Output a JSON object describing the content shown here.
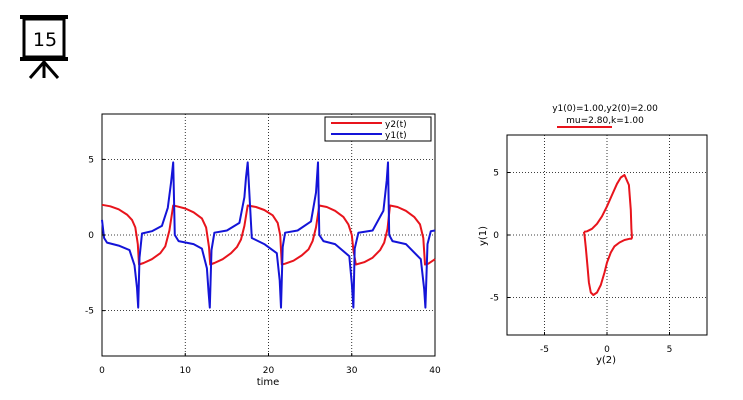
{
  "badge": {
    "number": "15",
    "icon": "presentation-board-icon"
  },
  "chart_data": [
    {
      "type": "line",
      "title": "",
      "xlabel": "time",
      "ylabel": "",
      "xlim": [
        0,
        40
      ],
      "ylim": [
        -8,
        8
      ],
      "xticks": [
        "0",
        "10",
        "20",
        "30",
        "40"
      ],
      "yticks": [
        "5",
        "0",
        "-5"
      ],
      "grid": true,
      "legend": "top-right",
      "period": 8.55,
      "series": [
        {
          "name": "y2(t)",
          "color": "#e8141c",
          "x": [
            0,
            1,
            2,
            3,
            3.6,
            4.0,
            4.3,
            4.45,
            5,
            6,
            7,
            7.6,
            8.1,
            8.55,
            9,
            10,
            11,
            12,
            12.5,
            12.85,
            13,
            13.5,
            14.5,
            15.5,
            16.2,
            16.7,
            17.1,
            17.5,
            18.5,
            19.5,
            20.5,
            21.1,
            21.4,
            21.6,
            22,
            23,
            24,
            24.8,
            25.3,
            25.7,
            26.1,
            27,
            28,
            29,
            29.6,
            30,
            30.2,
            30.5,
            31.5,
            32.5,
            33.4,
            33.9,
            34.3,
            34.6,
            35.5,
            36.5,
            37.5,
            38.2,
            38.6,
            38.8,
            39.2,
            40
          ],
          "y": [
            2.0,
            1.9,
            1.7,
            1.35,
            1.0,
            0.5,
            -0.6,
            -1.95,
            -1.85,
            -1.6,
            -1.2,
            -0.75,
            0.3,
            1.95,
            1.9,
            1.75,
            1.5,
            1.1,
            0.5,
            -0.8,
            -1.95,
            -1.85,
            -1.6,
            -1.2,
            -0.8,
            -0.3,
            0.6,
            1.95,
            1.85,
            1.65,
            1.3,
            0.8,
            0,
            -1.95,
            -1.9,
            -1.7,
            -1.35,
            -0.95,
            -0.4,
            0.5,
            1.95,
            1.85,
            1.6,
            1.2,
            0.7,
            0,
            -1.0,
            -1.95,
            -1.8,
            -1.5,
            -1.0,
            -0.5,
            0.4,
            1.95,
            1.85,
            1.6,
            1.2,
            0.7,
            -0.2,
            -1.95,
            -1.9,
            -1.6
          ]
        },
        {
          "name": "y1(t)",
          "color": "#1414d8",
          "x": [
            0,
            0.25,
            0.6,
            2,
            3.3,
            3.9,
            4.2,
            4.35,
            4.5,
            4.8,
            6,
            7.2,
            7.9,
            8.3,
            8.55,
            8.75,
            9.2,
            11,
            12,
            12.6,
            12.8,
            12.95,
            13.15,
            13.5,
            15,
            16.5,
            17.1,
            17.3,
            17.5,
            18,
            19.5,
            21.0,
            21.35,
            21.5,
            21.7,
            22,
            23.5,
            25.1,
            25.7,
            25.95,
            26.1,
            26.6,
            28,
            29.7,
            30.0,
            30.2,
            30.35,
            30.8,
            32.5,
            33.8,
            34.2,
            34.35,
            34.5,
            34.9,
            36.5,
            38.3,
            38.7,
            38.85,
            39.1,
            39.5,
            40
          ],
          "y": [
            1.0,
            -0.2,
            -0.5,
            -0.7,
            -1.0,
            -2.0,
            -3.5,
            -4.8,
            -1.5,
            0.1,
            0.25,
            0.6,
            1.8,
            3.5,
            4.8,
            0,
            -0.4,
            -0.6,
            -0.9,
            -2.2,
            -3.8,
            -4.8,
            -1.0,
            0.15,
            0.3,
            0.8,
            2.5,
            3.8,
            4.8,
            -0.2,
            -0.6,
            -1.2,
            -3.0,
            -4.8,
            -0.8,
            0.15,
            0.3,
            0.9,
            2.8,
            4.8,
            0,
            -0.4,
            -0.6,
            -1.4,
            -3.2,
            -4.8,
            -0.9,
            0.15,
            0.3,
            1.6,
            3.6,
            4.8,
            0,
            -0.4,
            -0.6,
            -1.6,
            -3.6,
            -4.8,
            -0.6,
            0.25,
            0.3
          ]
        }
      ]
    },
    {
      "type": "line",
      "title": "y1(0)=1.00,y2(0)=2.00",
      "subtitle": "mu=2.80,k=1.00",
      "xlabel": "y(2)",
      "ylabel": "y(1)",
      "xlim": [
        -8,
        8
      ],
      "ylim": [
        -8,
        8
      ],
      "xticks": [
        "-5",
        "0",
        "5"
      ],
      "yticks": [
        "5",
        "0",
        "-5"
      ],
      "grid": true,
      "legend": "none",
      "series": [
        {
          "color": "#e8141c",
          "x": [
            -1.85,
            -1.6,
            -1.2,
            -0.8,
            -0.4,
            0,
            0.4,
            0.8,
            1.1,
            1.4,
            1.75,
            1.9,
            1.95,
            2.0,
            1.95,
            1.8,
            1.4,
            1.0,
            0.6,
            0.3,
            0,
            -0.2,
            -0.5,
            -0.8,
            -1.1,
            -1.3,
            -1.45,
            -1.55,
            -1.7,
            -1.8,
            -1.85
          ],
          "y": [
            0.25,
            0.3,
            0.5,
            0.9,
            1.5,
            2.3,
            3.2,
            4.1,
            4.6,
            4.8,
            4.0,
            2.0,
            0.5,
            -0.2,
            -0.3,
            -0.3,
            -0.4,
            -0.6,
            -0.9,
            -1.4,
            -2.2,
            -3.0,
            -4.0,
            -4.6,
            -4.8,
            -4.6,
            -3.8,
            -2.6,
            -1.0,
            0.0,
            0.25
          ]
        }
      ]
    }
  ]
}
